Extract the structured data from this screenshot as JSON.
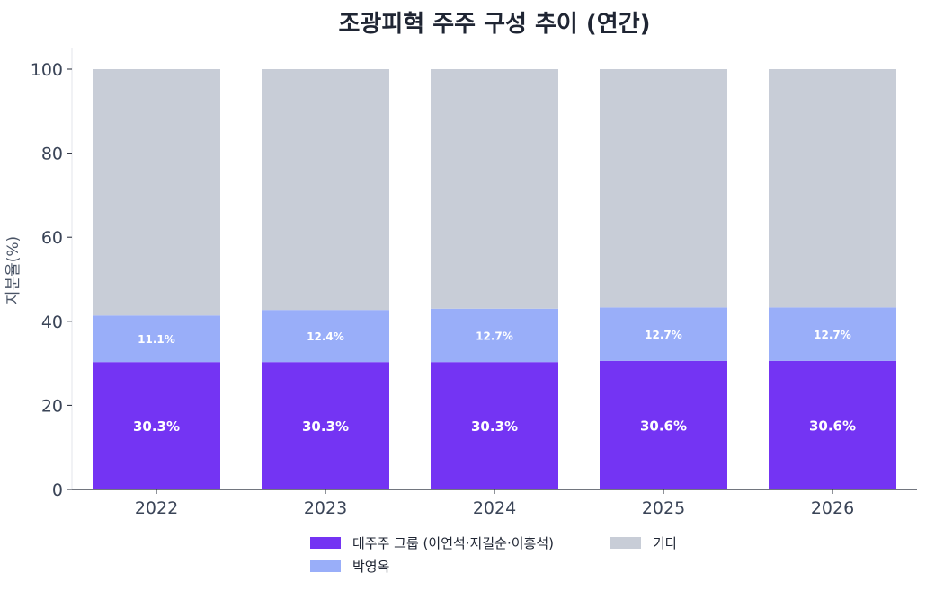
{
  "chart_data": {
    "type": "bar",
    "stacked": true,
    "title": "조광피혁 주주 구성 추이 (연간)",
    "ylabel": "지분율(%)",
    "xlabel": "",
    "ylim": [
      0,
      100
    ],
    "yticks": [
      "0",
      "20",
      "40",
      "60",
      "80",
      "100"
    ],
    "categories": [
      "2022",
      "2023",
      "2024",
      "2025",
      "2026"
    ],
    "series": [
      {
        "name": "대주주 그룹 (이연석·지길순·이홍석)",
        "values": [
          30.3,
          30.3,
          30.3,
          30.6,
          30.6
        ],
        "labels": [
          "30.3%",
          "30.3%",
          "30.3%",
          "30.6%",
          "30.6%"
        ],
        "color": "#7434f3"
      },
      {
        "name": "박영옥",
        "values": [
          11.1,
          12.4,
          12.7,
          12.7,
          12.7
        ],
        "labels": [
          "11.1%",
          "12.4%",
          "12.7%",
          "12.7%",
          "12.7%"
        ],
        "color": "#99aef9"
      },
      {
        "name": "기타",
        "values": [
          58.6,
          57.3,
          57.0,
          56.7,
          56.7
        ],
        "labels": [
          "",
          "",
          "",
          "",
          ""
        ],
        "color": "#c8cdd7"
      }
    ],
    "grid": false,
    "legend_position": "bottom-center"
  }
}
